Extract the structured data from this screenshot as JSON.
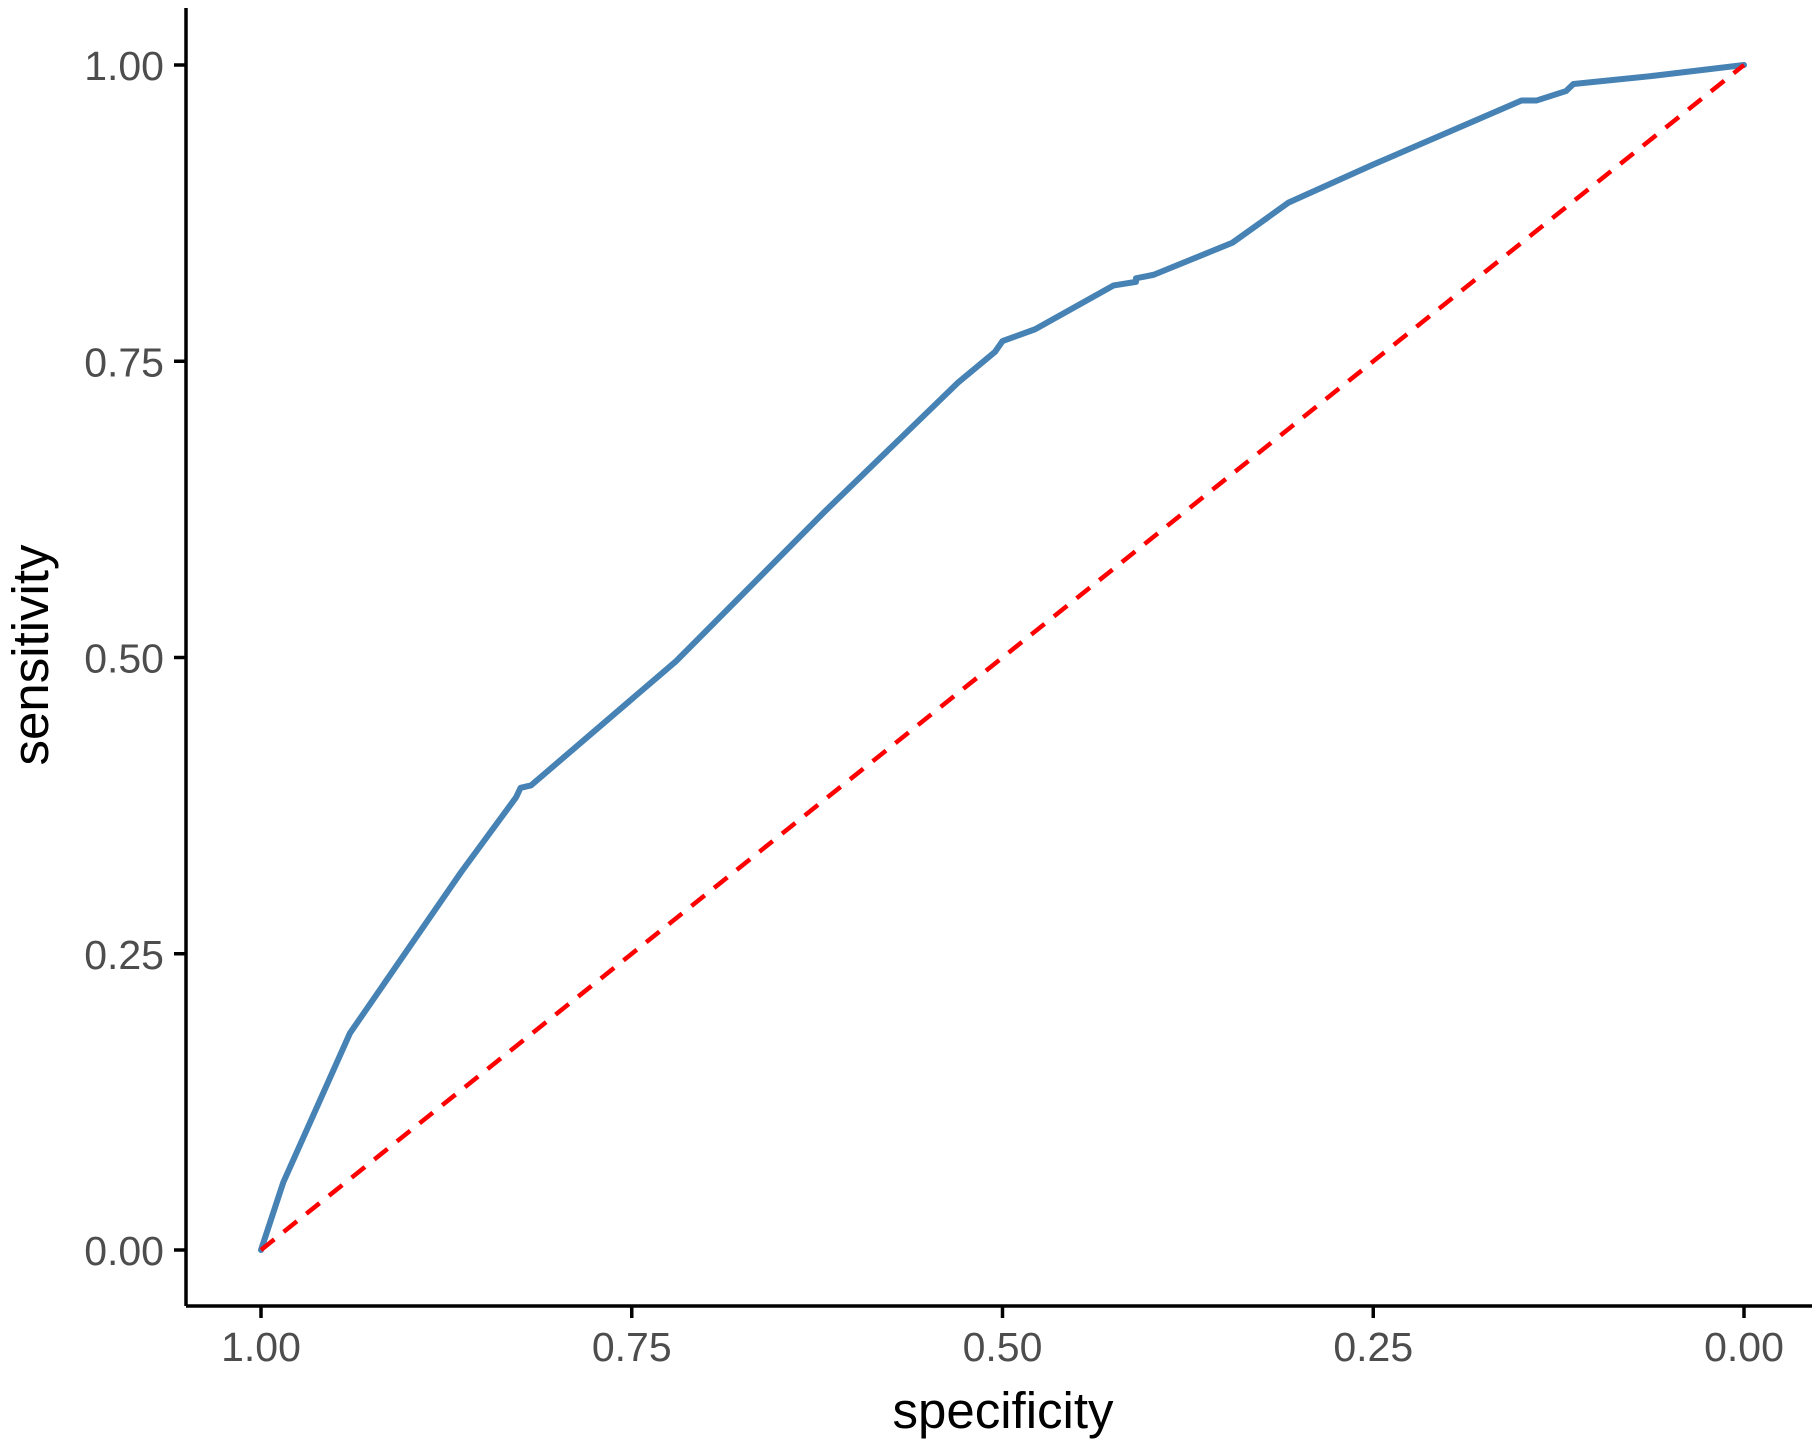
{
  "chart_data": {
    "type": "line",
    "title": "",
    "xlabel": "specificity",
    "ylabel": "sensitivity",
    "x_reversed": true,
    "xlim": [
      1.0,
      0.0
    ],
    "ylim": [
      0.0,
      1.0
    ],
    "x_ticks": [
      {
        "value": 1.0,
        "label": "1.00"
      },
      {
        "value": 0.75,
        "label": "0.75"
      },
      {
        "value": 0.5,
        "label": "0.50"
      },
      {
        "value": 0.25,
        "label": "0.25"
      },
      {
        "value": 0.0,
        "label": "0.00"
      }
    ],
    "y_ticks": [
      {
        "value": 0.0,
        "label": "0.00"
      },
      {
        "value": 0.25,
        "label": "0.25"
      },
      {
        "value": 0.5,
        "label": "0.50"
      },
      {
        "value": 0.75,
        "label": "0.75"
      },
      {
        "value": 1.0,
        "label": "1.00"
      }
    ],
    "grid": false,
    "series": [
      {
        "color": "#4682b4",
        "line_style": "solid",
        "points": [
          {
            "specificity": 1.0,
            "sensitivity": 0.0
          },
          {
            "specificity": 0.985,
            "sensitivity": 0.057
          },
          {
            "specificity": 0.94,
            "sensitivity": 0.183
          },
          {
            "specificity": 0.865,
            "sensitivity": 0.319
          },
          {
            "specificity": 0.828,
            "sensitivity": 0.382
          },
          {
            "specificity": 0.825,
            "sensitivity": 0.39
          },
          {
            "specificity": 0.818,
            "sensitivity": 0.392
          },
          {
            "specificity": 0.72,
            "sensitivity": 0.497
          },
          {
            "specificity": 0.62,
            "sensitivity": 0.623
          },
          {
            "specificity": 0.53,
            "sensitivity": 0.732
          },
          {
            "specificity": 0.505,
            "sensitivity": 0.758
          },
          {
            "specificity": 0.5,
            "sensitivity": 0.767
          },
          {
            "specificity": 0.478,
            "sensitivity": 0.777
          },
          {
            "specificity": 0.425,
            "sensitivity": 0.814
          },
          {
            "specificity": 0.41,
            "sensitivity": 0.817
          },
          {
            "specificity": 0.41,
            "sensitivity": 0.82
          },
          {
            "specificity": 0.398,
            "sensitivity": 0.823
          },
          {
            "specificity": 0.345,
            "sensitivity": 0.85
          },
          {
            "specificity": 0.307,
            "sensitivity": 0.884
          },
          {
            "specificity": 0.25,
            "sensitivity": 0.916
          },
          {
            "specificity": 0.15,
            "sensitivity": 0.97
          },
          {
            "specificity": 0.14,
            "sensitivity": 0.97
          },
          {
            "specificity": 0.12,
            "sensitivity": 0.978
          },
          {
            "specificity": 0.115,
            "sensitivity": 0.984
          },
          {
            "specificity": 0.06,
            "sensitivity": 0.991
          },
          {
            "specificity": 0.0,
            "sensitivity": 1.0
          }
        ]
      },
      {
        "color": "#ff0000",
        "line_style": "dashed",
        "points": [
          {
            "specificity": 1.0,
            "sensitivity": 0.0
          },
          {
            "specificity": 0.0,
            "sensitivity": 1.0
          }
        ]
      }
    ]
  }
}
